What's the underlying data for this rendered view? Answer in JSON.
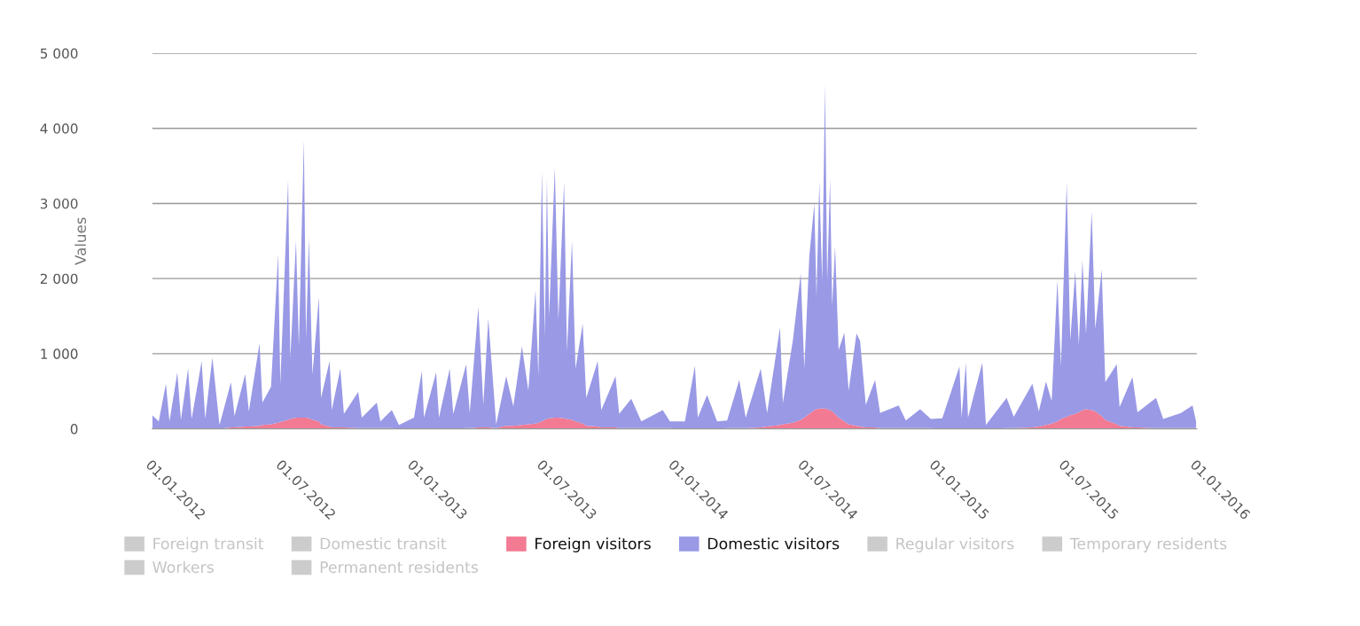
{
  "chart_data": {
    "type": "area",
    "stacked": true,
    "ylabel": "Values",
    "grid": "y",
    "legend": "bottom",
    "ylim": [
      0,
      5000
    ],
    "yticks": [
      0,
      {
        "value": 1000,
        "label": "1 000"
      },
      {
        "value": 2000,
        "label": "2 000"
      },
      {
        "value": 3000,
        "label": "3 000"
      },
      {
        "value": 4000,
        "label": "4 000"
      },
      {
        "value": 5000,
        "label": "5 000"
      }
    ],
    "xlim": [
      "2012-01-01",
      "2016-01-01"
    ],
    "xticks": [
      {
        "value": "2012-01-01",
        "label": "01.01.2012"
      },
      {
        "value": "2012-07-01",
        "label": "01.07.2012"
      },
      {
        "value": "2013-01-01",
        "label": "01.01.2013"
      },
      {
        "value": "2013-07-01",
        "label": "01.07.2013"
      },
      {
        "value": "2014-01-01",
        "label": "01.01.2014"
      },
      {
        "value": "2014-07-01",
        "label": "01.07.2014"
      },
      {
        "value": "2015-01-01",
        "label": "01.01.2015"
      },
      {
        "value": "2015-07-01",
        "label": "01.07.2015"
      },
      {
        "value": "2016-01-01",
        "label": "01.01.2016"
      }
    ],
    "x": [
      "2012-01-01",
      "2012-01-10",
      "2012-01-20",
      "2012-01-25",
      "2012-02-05",
      "2012-02-10",
      "2012-02-20",
      "2012-02-25",
      "2012-03-10",
      "2012-03-15",
      "2012-03-25",
      "2012-04-04",
      "2012-04-20",
      "2012-04-25",
      "2012-05-10",
      "2012-05-15",
      "2012-05-30",
      "2012-06-03",
      "2012-06-15",
      "2012-06-25",
      "2012-06-28",
      "2012-07-09",
      "2012-07-12",
      "2012-07-20",
      "2012-07-24",
      "2012-07-31",
      "2012-08-03",
      "2012-08-07",
      "2012-08-12",
      "2012-08-21",
      "2012-08-24",
      "2012-09-05",
      "2012-09-08",
      "2012-09-20",
      "2012-09-25",
      "2012-10-15",
      "2012-10-20",
      "2012-11-10",
      "2012-11-15",
      "2012-12-01",
      "2012-12-11",
      "2013-01-01",
      "2013-01-12",
      "2013-01-15",
      "2013-02-01",
      "2013-02-05",
      "2013-02-20",
      "2013-02-25",
      "2013-03-15",
      "2013-03-20",
      "2013-04-01",
      "2013-04-08",
      "2013-04-15",
      "2013-04-26",
      "2013-05-10",
      "2013-05-20",
      "2013-06-01",
      "2013-06-10",
      "2013-06-20",
      "2013-06-24",
      "2013-06-29",
      "2013-07-03",
      "2013-07-06",
      "2013-07-09",
      "2013-07-17",
      "2013-07-22",
      "2013-07-30",
      "2013-08-03",
      "2013-08-10",
      "2013-08-15",
      "2013-08-25",
      "2013-08-30",
      "2013-09-15",
      "2013-09-20",
      "2013-10-10",
      "2013-10-15",
      "2013-11-01",
      "2013-11-15",
      "2013-12-15",
      "2013-12-25",
      "2014-01-15",
      "2014-01-29",
      "2014-02-02",
      "2014-02-15",
      "2014-03-01",
      "2014-03-15",
      "2014-04-01",
      "2014-04-10",
      "2014-05-01",
      "2014-05-10",
      "2014-05-28",
      "2014-06-01",
      "2014-06-15",
      "2014-06-26",
      "2014-07-01",
      "2014-07-08",
      "2014-07-15",
      "2014-07-18",
      "2014-07-22",
      "2014-07-26",
      "2014-07-30",
      "2014-08-02",
      "2014-08-06",
      "2014-08-09",
      "2014-08-13",
      "2014-08-18",
      "2014-08-26",
      "2014-09-01",
      "2014-09-12",
      "2014-09-17",
      "2014-09-25",
      "2014-10-08",
      "2014-10-15",
      "2014-11-10",
      "2014-11-20",
      "2014-12-10",
      "2014-12-25",
      "2015-01-10",
      "2015-02-03",
      "2015-02-06",
      "2015-02-12",
      "2015-02-15",
      "2015-03-07",
      "2015-03-12",
      "2015-04-10",
      "2015-04-20",
      "2015-05-16",
      "2015-05-25",
      "2015-06-04",
      "2015-06-12",
      "2015-06-20",
      "2015-06-25",
      "2015-07-03",
      "2015-07-08",
      "2015-07-15",
      "2015-07-20",
      "2015-07-25",
      "2015-07-30",
      "2015-08-07",
      "2015-08-12",
      "2015-08-21",
      "2015-08-26",
      "2015-09-11",
      "2015-09-15",
      "2015-10-03",
      "2015-10-10",
      "2015-11-05",
      "2015-11-15",
      "2015-12-10",
      "2015-12-26",
      "2015-12-31"
    ],
    "series": [
      {
        "name": "Foreign transit",
        "color": "#cccccc",
        "values": [
          null,
          null,
          null,
          null,
          null,
          null,
          null,
          null,
          null,
          null,
          null,
          null,
          null,
          null,
          null,
          null,
          null,
          null,
          null,
          null,
          null,
          null,
          null,
          null,
          null,
          null,
          null,
          null,
          null,
          null,
          null,
          null,
          null,
          null,
          null,
          null,
          null,
          null,
          null,
          null,
          null,
          null,
          null,
          null,
          null,
          null,
          null,
          null,
          null,
          null,
          null,
          null,
          null,
          null,
          null,
          null,
          null,
          null,
          null,
          null,
          null,
          null,
          null,
          null,
          null,
          null,
          null,
          null,
          null,
          null,
          null,
          null,
          null,
          null,
          null,
          null,
          null,
          null,
          null,
          null,
          null,
          null,
          null,
          null,
          null,
          null,
          null,
          null,
          null,
          null,
          null,
          null,
          null,
          null,
          null,
          null,
          null,
          null,
          null,
          null,
          null,
          null,
          null,
          null,
          null,
          null,
          null,
          null,
          null,
          null,
          null,
          null,
          null,
          null,
          null,
          null,
          null,
          null,
          null,
          null,
          null,
          null,
          null,
          null,
          null,
          null,
          null,
          null,
          null,
          null,
          null,
          null,
          null,
          null,
          null,
          null,
          null,
          null,
          null,
          null,
          null,
          null,
          null,
          null,
          null,
          null,
          null,
          null,
          null,
          null,
          null
        ]
      },
      {
        "name": "Domestic transit",
        "color": "#cccccc",
        "values": [
          null,
          null,
          null,
          null,
          null,
          null,
          null,
          null,
          null,
          null,
          null,
          null,
          null,
          null,
          null,
          null,
          null,
          null,
          null,
          null,
          null,
          null,
          null,
          null,
          null,
          null,
          null,
          null,
          null,
          null,
          null,
          null,
          null,
          null,
          null,
          null,
          null,
          null,
          null,
          null,
          null,
          null,
          null,
          null,
          null,
          null,
          null,
          null,
          null,
          null,
          null,
          null,
          null,
          null,
          null,
          null,
          null,
          null,
          null,
          null,
          null,
          null,
          null,
          null,
          null,
          null,
          null,
          null,
          null,
          null,
          null,
          null,
          null,
          null,
          null,
          null,
          null,
          null,
          null,
          null,
          null,
          null,
          null,
          null,
          null,
          null,
          null,
          null,
          null,
          null,
          null,
          null,
          null,
          null,
          null,
          null,
          null,
          null,
          null,
          null,
          null,
          null,
          null,
          null,
          null,
          null,
          null,
          null,
          null,
          null,
          null,
          null,
          null,
          null,
          null,
          null,
          null,
          null,
          null,
          null,
          null,
          null,
          null,
          null,
          null,
          null,
          null,
          null,
          null,
          null,
          null,
          null,
          null,
          null,
          null,
          null,
          null,
          null,
          null,
          null,
          null,
          null,
          null,
          null,
          null,
          null,
          null,
          null,
          null,
          null,
          null
        ]
      },
      {
        "name": "Foreign visitors",
        "color": "#f27a92",
        "values": [
          0,
          0,
          0,
          0,
          0,
          0,
          0,
          0,
          0,
          0,
          0,
          0,
          20,
          20,
          30,
          30,
          40,
          50,
          60,
          80,
          90,
          120,
          130,
          150,
          150,
          150,
          150,
          140,
          120,
          100,
          60,
          30,
          20,
          20,
          20,
          10,
          10,
          10,
          10,
          10,
          0,
          0,
          0,
          0,
          0,
          0,
          0,
          0,
          10,
          10,
          20,
          20,
          20,
          10,
          40,
          40,
          50,
          60,
          70,
          80,
          100,
          120,
          130,
          140,
          150,
          150,
          140,
          130,
          120,
          100,
          70,
          40,
          30,
          20,
          20,
          10,
          10,
          10,
          10,
          10,
          0,
          0,
          0,
          0,
          0,
          10,
          10,
          10,
          20,
          30,
          50,
          60,
          80,
          120,
          150,
          200,
          250,
          260,
          270,
          270,
          270,
          260,
          250,
          230,
          200,
          150,
          100,
          60,
          40,
          30,
          20,
          20,
          10,
          10,
          10,
          10,
          10,
          0,
          0,
          0,
          0,
          0,
          0,
          0,
          10,
          10,
          20,
          30,
          50,
          70,
          100,
          130,
          160,
          180,
          200,
          220,
          250,
          260,
          250,
          230,
          170,
          120,
          60,
          40,
          20,
          20,
          10,
          10,
          10,
          10,
          10
        ]
      },
      {
        "name": "Domestic visitors",
        "color": "#9999e6",
        "values": [
          180,
          100,
          600,
          100,
          750,
          120,
          800,
          130,
          900,
          130,
          950,
          50,
          600,
          150,
          700,
          200,
          1100,
          300,
          500,
          2250,
          500,
          3200,
          800,
          2350,
          950,
          3700,
          1050,
          2400,
          600,
          1650,
          350,
          870,
          230,
          780,
          180,
          480,
          140,
          340,
          90,
          240,
          50,
          150,
          770,
          150,
          750,
          150,
          800,
          200,
          850,
          200,
          1600,
          300,
          1450,
          50,
          660,
          260,
          1050,
          450,
          1780,
          620,
          3330,
          1100,
          3200,
          1350,
          3330,
          1300,
          3150,
          900,
          2380,
          700,
          1330,
          370,
          870,
          230,
          680,
          190,
          390,
          90,
          240,
          90,
          100,
          840,
          150,
          450,
          100,
          100,
          640,
          140,
          780,
          180,
          1300,
          280,
          1100,
          1950,
          650,
          2100,
          2750,
          1500,
          3020,
          1700,
          4320,
          1700,
          3080,
          1400,
          2230,
          900,
          1180,
          450,
          1230,
          1140,
          300,
          630,
          200,
          300,
          100,
          250,
          120,
          140,
          830,
          150,
          880,
          150,
          880,
          50,
          400,
          150,
          580,
          200,
          580,
          300,
          1880,
          700,
          3120,
          1000,
          1900,
          900,
          2000,
          1000,
          2650,
          1100,
          1950,
          500,
          800,
          250,
          670,
          200,
          400,
          120,
          200,
          300,
          90
        ]
      },
      {
        "name": "Regular visitors",
        "color": "#cccccc",
        "values": [
          null,
          null,
          null,
          null,
          null,
          null,
          null,
          null,
          null,
          null,
          null,
          null,
          null,
          null,
          null,
          null,
          null,
          null,
          null,
          null,
          null,
          null,
          null,
          null,
          null,
          null,
          null,
          null,
          null,
          null,
          null,
          null,
          null,
          null,
          null,
          null,
          null,
          null,
          null,
          null,
          null,
          null,
          null,
          null,
          null,
          null,
          null,
          null,
          null,
          null,
          null,
          null,
          null,
          null,
          null,
          null,
          null,
          null,
          null,
          null,
          null,
          null,
          null,
          null,
          null,
          null,
          null,
          null,
          null,
          null,
          null,
          null,
          null,
          null,
          null,
          null,
          null,
          null,
          null,
          null,
          null,
          null,
          null,
          null,
          null,
          null,
          null,
          null,
          null,
          null,
          null,
          null,
          null,
          null,
          null,
          null,
          null,
          null,
          null,
          null,
          null,
          null,
          null,
          null,
          null,
          null,
          null,
          null,
          null,
          null,
          null,
          null,
          null,
          null,
          null,
          null,
          null,
          null,
          null,
          null,
          null,
          null,
          null,
          null,
          null,
          null,
          null,
          null,
          null,
          null,
          null,
          null,
          null,
          null,
          null,
          null,
          null,
          null,
          null,
          null,
          null,
          null,
          null,
          null,
          null,
          null,
          null,
          null,
          null,
          null,
          null
        ]
      },
      {
        "name": "Temporary residents",
        "color": "#cccccc",
        "values": [
          null,
          null,
          null,
          null,
          null,
          null,
          null,
          null,
          null,
          null,
          null,
          null,
          null,
          null,
          null,
          null,
          null,
          null,
          null,
          null,
          null,
          null,
          null,
          null,
          null,
          null,
          null,
          null,
          null,
          null,
          null,
          null,
          null,
          null,
          null,
          null,
          null,
          null,
          null,
          null,
          null,
          null,
          null,
          null,
          null,
          null,
          null,
          null,
          null,
          null,
          null,
          null,
          null,
          null,
          null,
          null,
          null,
          null,
          null,
          null,
          null,
          null,
          null,
          null,
          null,
          null,
          null,
          null,
          null,
          null,
          null,
          null,
          null,
          null,
          null,
          null,
          null,
          null,
          null,
          null,
          null,
          null,
          null,
          null,
          null,
          null,
          null,
          null,
          null,
          null,
          null,
          null,
          null,
          null,
          null,
          null,
          null,
          null,
          null,
          null,
          null,
          null,
          null,
          null,
          null,
          null,
          null,
          null,
          null,
          null,
          null,
          null,
          null,
          null,
          null,
          null,
          null,
          null,
          null,
          null,
          null,
          null,
          null,
          null,
          null,
          null,
          null,
          null,
          null,
          null,
          null,
          null,
          null,
          null,
          null,
          null,
          null,
          null,
          null,
          null,
          null,
          null,
          null,
          null,
          null,
          null,
          null,
          null,
          null,
          null,
          null
        ]
      },
      {
        "name": "Workers",
        "color": "#cccccc",
        "values": [
          null,
          null,
          null,
          null,
          null,
          null,
          null,
          null,
          null,
          null,
          null,
          null,
          null,
          null,
          null,
          null,
          null,
          null,
          null,
          null,
          null,
          null,
          null,
          null,
          null,
          null,
          null,
          null,
          null,
          null,
          null,
          null,
          null,
          null,
          null,
          null,
          null,
          null,
          null,
          null,
          null,
          null,
          null,
          null,
          null,
          null,
          null,
          null,
          null,
          null,
          null,
          null,
          null,
          null,
          null,
          null,
          null,
          null,
          null,
          null,
          null,
          null,
          null,
          null,
          null,
          null,
          null,
          null,
          null,
          null,
          null,
          null,
          null,
          null,
          null,
          null,
          null,
          null,
          null,
          null,
          null,
          null,
          null,
          null,
          null,
          null,
          null,
          null,
          null,
          null,
          null,
          null,
          null,
          null,
          null,
          null,
          null,
          null,
          null,
          null,
          null,
          null,
          null,
          null,
          null,
          null,
          null,
          null,
          null,
          null,
          null,
          null,
          null,
          null,
          null,
          null,
          null,
          null,
          null,
          null,
          null,
          null,
          null,
          null,
          null,
          null,
          null,
          null,
          null,
          null,
          null,
          null,
          null,
          null,
          null,
          null,
          null,
          null,
          null,
          null,
          null,
          null,
          null,
          null,
          null,
          null,
          null,
          null,
          null,
          null,
          null
        ]
      },
      {
        "name": "Permanent residents",
        "color": "#cccccc",
        "values": [
          null,
          null,
          null,
          null,
          null,
          null,
          null,
          null,
          null,
          null,
          null,
          null,
          null,
          null,
          null,
          null,
          null,
          null,
          null,
          null,
          null,
          null,
          null,
          null,
          null,
          null,
          null,
          null,
          null,
          null,
          null,
          null,
          null,
          null,
          null,
          null,
          null,
          null,
          null,
          null,
          null,
          null,
          null,
          null,
          null,
          null,
          null,
          null,
          null,
          null,
          null,
          null,
          null,
          null,
          null,
          null,
          null,
          null,
          null,
          null,
          null,
          null,
          null,
          null,
          null,
          null,
          null,
          null,
          null,
          null,
          null,
          null,
          null,
          null,
          null,
          null,
          null,
          null,
          null,
          null,
          null,
          null,
          null,
          null,
          null,
          null,
          null,
          null,
          null,
          null,
          null,
          null,
          null,
          null,
          null,
          null,
          null,
          null,
          null,
          null,
          null,
          null,
          null,
          null,
          null,
          null,
          null,
          null,
          null,
          null,
          null,
          null,
          null,
          null,
          null,
          null,
          null,
          null,
          null,
          null,
          null,
          null,
          null,
          null,
          null,
          null,
          null,
          null,
          null,
          null,
          null,
          null,
          null,
          null,
          null,
          null,
          null,
          null,
          null,
          null,
          null,
          null,
          null,
          null,
          null,
          null,
          null,
          null,
          null,
          null,
          null
        ]
      }
    ]
  }
}
